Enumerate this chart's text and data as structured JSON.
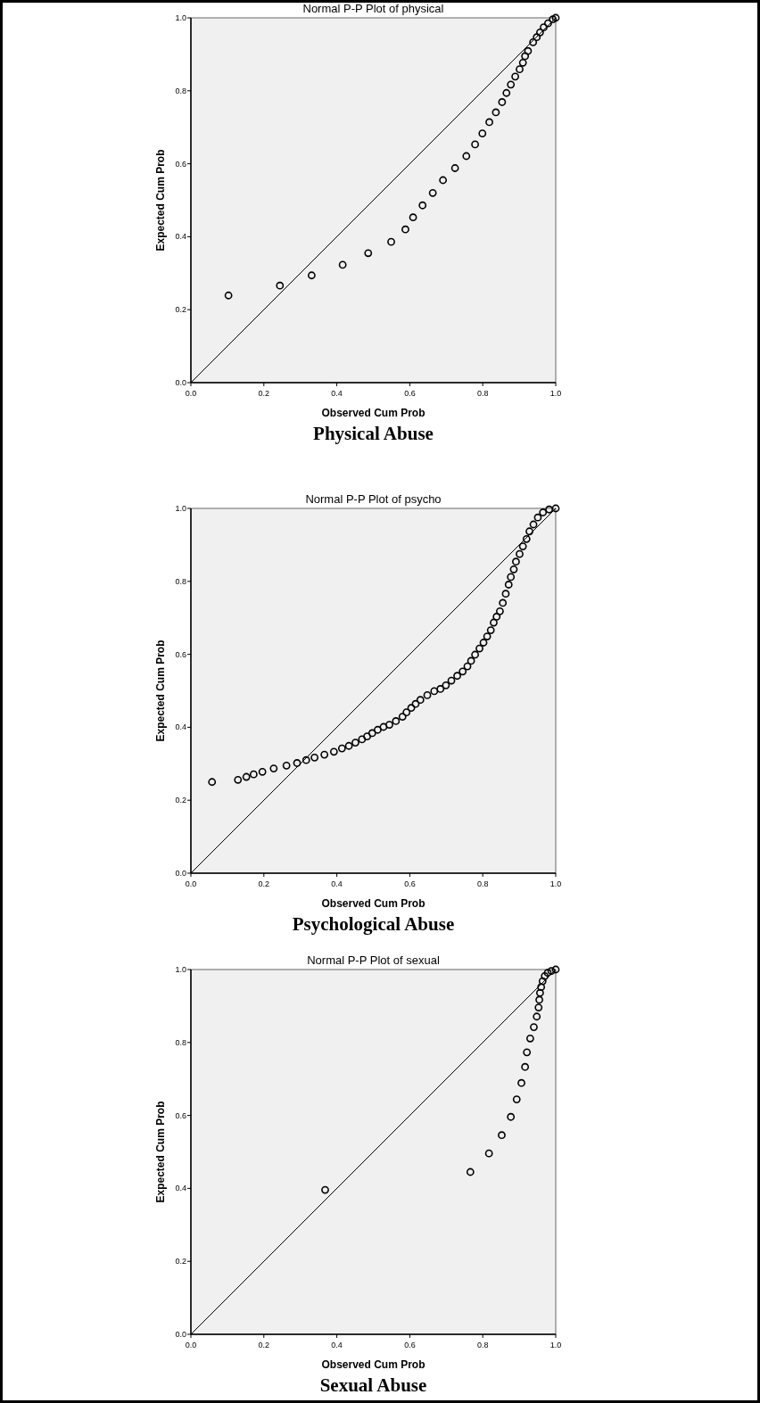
{
  "chart_data": [
    {
      "type": "scatter",
      "title": "Normal P-P Plot of physical",
      "xlabel": "Observed Cum Prob",
      "ylabel": "Expected Cum Prob",
      "annotations": [
        "Physical Abuse"
      ],
      "xlim": [
        0,
        1
      ],
      "ylim": [
        0,
        1
      ],
      "xticks": [
        {
          "value": 0,
          "label": "0.0"
        },
        {
          "value": 0.2,
          "label": "0.2"
        },
        {
          "value": 0.4,
          "label": "0.4"
        },
        {
          "value": 0.6,
          "label": "0.6"
        },
        {
          "value": 0.8,
          "label": "0.8"
        },
        {
          "value": 1,
          "label": "1.0"
        }
      ],
      "yticks": [
        {
          "value": 0,
          "label": "0.0"
        },
        {
          "value": 0.2,
          "label": "0.2"
        },
        {
          "value": 0.4,
          "label": "0.4"
        },
        {
          "value": 0.6,
          "label": "0.6"
        },
        {
          "value": 0.8,
          "label": "0.8"
        },
        {
          "value": 1,
          "label": "1.0"
        }
      ],
      "grid": false,
      "series": [
        {
          "color": "#000000",
          "marker": "circle",
          "x": [
            0.103,
            0.244,
            0.331,
            0.416,
            0.486,
            0.549,
            0.588,
            0.609,
            0.635,
            0.663,
            0.691,
            0.724,
            0.755,
            0.779,
            0.799,
            0.818,
            0.836,
            0.853,
            0.865,
            0.877,
            0.889,
            0.901,
            0.91,
            0.916,
            0.924,
            0.938,
            0.948,
            0.957,
            0.967,
            0.979,
            0.992,
            1
          ],
          "values": [
            0.239,
            0.266,
            0.294,
            0.323,
            0.355,
            0.386,
            0.42,
            0.453,
            0.486,
            0.52,
            0.555,
            0.588,
            0.621,
            0.653,
            0.683,
            0.714,
            0.741,
            0.769,
            0.794,
            0.817,
            0.839,
            0.859,
            0.877,
            0.895,
            0.909,
            0.933,
            0.947,
            0.96,
            0.974,
            0.985,
            0.996,
            1
          ]
        },
        {
          "type": "line",
          "color": "#000000",
          "marker": "none",
          "x": [
            0,
            1
          ],
          "values": [
            0,
            1
          ]
        }
      ]
    },
    {
      "type": "scatter",
      "title": "Normal P-P Plot of psycho",
      "xlabel": "Observed Cum Prob",
      "ylabel": "Expected Cum Prob",
      "annotations": [
        "Psychological Abuse"
      ],
      "xlim": [
        0,
        1
      ],
      "ylim": [
        0,
        1
      ],
      "xticks": [
        {
          "value": 0,
          "label": "0.0"
        },
        {
          "value": 0.2,
          "label": "0.2"
        },
        {
          "value": 0.4,
          "label": "0.4"
        },
        {
          "value": 0.6,
          "label": "0.6"
        },
        {
          "value": 0.8,
          "label": "0.8"
        },
        {
          "value": 1,
          "label": "1.0"
        }
      ],
      "yticks": [
        {
          "value": 0,
          "label": "0.0"
        },
        {
          "value": 0.2,
          "label": "0.2"
        },
        {
          "value": 0.4,
          "label": "0.4"
        },
        {
          "value": 0.6,
          "label": "0.6"
        },
        {
          "value": 0.8,
          "label": "0.8"
        },
        {
          "value": 1,
          "label": "1.0"
        }
      ],
      "grid": false,
      "series": [
        {
          "color": "#000000",
          "marker": "circle",
          "x": [
            0.058,
            0.129,
            0.152,
            0.172,
            0.196,
            0.227,
            0.262,
            0.291,
            0.316,
            0.339,
            0.366,
            0.392,
            0.414,
            0.433,
            0.451,
            0.469,
            0.483,
            0.497,
            0.512,
            0.528,
            0.544,
            0.562,
            0.58,
            0.591,
            0.604,
            0.616,
            0.629,
            0.648,
            0.667,
            0.684,
            0.699,
            0.714,
            0.73,
            0.745,
            0.758,
            0.768,
            0.779,
            0.791,
            0.802,
            0.812,
            0.822,
            0.83,
            0.838,
            0.847,
            0.855,
            0.863,
            0.871,
            0.877,
            0.885,
            0.891,
            0.901,
            0.91,
            0.92,
            0.928,
            0.939,
            0.951,
            0.965,
            0.982,
            1
          ],
          "values": [
            0.25,
            0.256,
            0.264,
            0.271,
            0.278,
            0.287,
            0.295,
            0.302,
            0.31,
            0.317,
            0.325,
            0.333,
            0.342,
            0.349,
            0.358,
            0.367,
            0.375,
            0.384,
            0.393,
            0.401,
            0.407,
            0.417,
            0.429,
            0.441,
            0.453,
            0.464,
            0.475,
            0.488,
            0.499,
            0.505,
            0.515,
            0.528,
            0.541,
            0.553,
            0.567,
            0.582,
            0.599,
            0.616,
            0.632,
            0.649,
            0.666,
            0.687,
            0.703,
            0.718,
            0.741,
            0.766,
            0.791,
            0.812,
            0.833,
            0.854,
            0.875,
            0.896,
            0.916,
            0.937,
            0.956,
            0.975,
            0.989,
            0.997,
            1
          ]
        },
        {
          "type": "line",
          "color": "#000000",
          "marker": "none",
          "x": [
            0,
            1
          ],
          "values": [
            0,
            1
          ]
        }
      ]
    },
    {
      "type": "scatter",
      "title": "Normal P-P Plot of sexual",
      "xlabel": "Observed Cum Prob",
      "ylabel": "Expected Cum Prob",
      "annotations": [
        "Sexual Abuse"
      ],
      "xlim": [
        0,
        1
      ],
      "ylim": [
        0,
        1
      ],
      "xticks": [
        {
          "value": 0,
          "label": "0.0"
        },
        {
          "value": 0.2,
          "label": "0.2"
        },
        {
          "value": 0.4,
          "label": "0.4"
        },
        {
          "value": 0.6,
          "label": "0.6"
        },
        {
          "value": 0.8,
          "label": "0.8"
        },
        {
          "value": 1,
          "label": "1.0"
        }
      ],
      "yticks": [
        {
          "value": 0,
          "label": "0.0"
        },
        {
          "value": 0.2,
          "label": "0.2"
        },
        {
          "value": 0.4,
          "label": "0.4"
        },
        {
          "value": 0.6,
          "label": "0.6"
        },
        {
          "value": 0.8,
          "label": "0.8"
        },
        {
          "value": 1,
          "label": "1.0"
        }
      ],
      "grid": false,
      "series": [
        {
          "color": "#000000",
          "marker": "circle",
          "x": [
            0.368,
            0.766,
            0.817,
            0.852,
            0.877,
            0.893,
            0.906,
            0.916,
            0.921,
            0.93,
            0.94,
            0.948,
            0.953,
            0.955,
            0.957,
            0.96,
            0.964,
            0.97,
            0.978,
            0.988,
            1
          ],
          "values": [
            0.396,
            0.445,
            0.496,
            0.546,
            0.596,
            0.644,
            0.689,
            0.733,
            0.773,
            0.811,
            0.842,
            0.871,
            0.896,
            0.917,
            0.936,
            0.952,
            0.968,
            0.982,
            0.991,
            0.996,
            1
          ]
        },
        {
          "type": "line",
          "color": "#000000",
          "marker": "none",
          "x": [
            0,
            1
          ],
          "values": [
            0,
            1
          ]
        }
      ]
    }
  ]
}
